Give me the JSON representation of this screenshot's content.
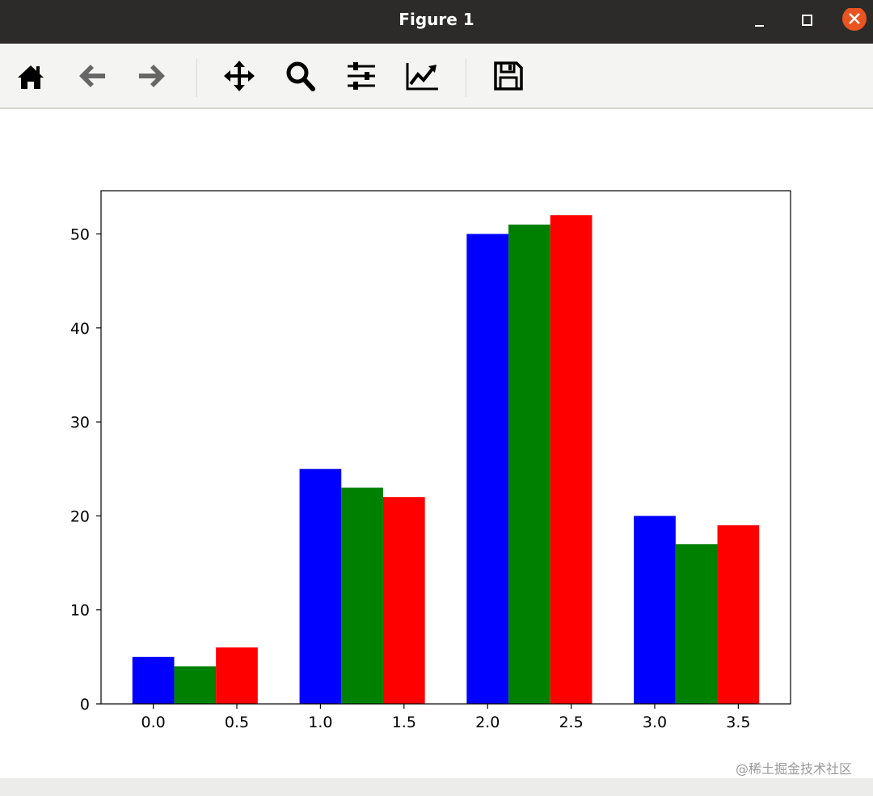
{
  "window": {
    "title": "Figure 1",
    "close_color": "#e95420"
  },
  "toolbar": {
    "icons": [
      "home-icon",
      "back-icon",
      "forward-icon",
      "pan-icon",
      "zoom-icon",
      "configure-subplots-icon",
      "edit-axis-icon",
      "save-icon"
    ]
  },
  "watermark": "@稀土掘金技术社区",
  "chart_data": {
    "type": "bar",
    "bar_width": 0.25,
    "series": [
      {
        "color": "#0000ff",
        "x": [
          0,
          1,
          2,
          3
        ],
        "values": [
          5,
          25,
          50,
          20
        ]
      },
      {
        "color": "#008000",
        "x": [
          0.25,
          1.25,
          2.25,
          3.25
        ],
        "values": [
          4,
          23,
          51,
          17
        ]
      },
      {
        "color": "#ff0000",
        "x": [
          0.5,
          1.5,
          2.5,
          3.5
        ],
        "values": [
          6,
          22,
          52,
          19
        ]
      }
    ],
    "xlim": [
      -0.3125,
      3.8125
    ],
    "ylim": [
      0,
      54.6
    ],
    "xticks": [
      0,
      0.5,
      1,
      1.5,
      2,
      2.5,
      3,
      3.5
    ],
    "xtick_labels": [
      "0.0",
      "0.5",
      "1.0",
      "1.5",
      "2.0",
      "2.5",
      "3.0",
      "3.5"
    ],
    "yticks": [
      0,
      10,
      20,
      30,
      40,
      50
    ],
    "ytick_labels": [
      "0",
      "10",
      "20",
      "30",
      "40",
      "50"
    ],
    "grid": false,
    "title": "",
    "xlabel": "",
    "ylabel": ""
  }
}
